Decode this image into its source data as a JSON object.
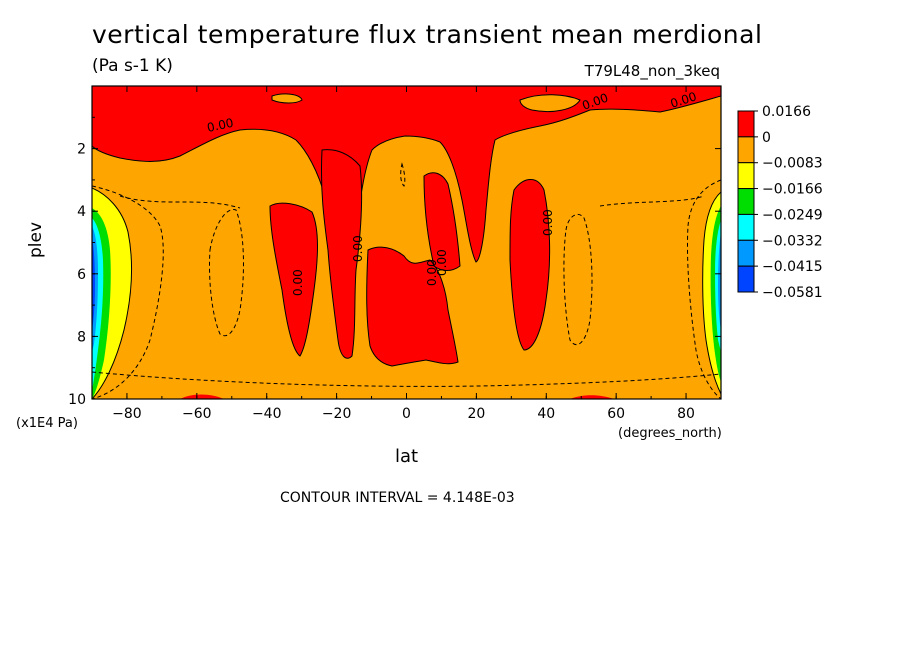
{
  "colors": {
    "c_pos": "#ff0000",
    "c_zero": "#ffa500",
    "c_m1": "#ffff00",
    "c_m2": "#00dd00",
    "c_m3": "#00ffff",
    "c_m4": "#0099ff",
    "c_m5": "#0044ff"
  },
  "chart_data": {
    "type": "heatmap",
    "title": "vertical temperature flux transient mean merdional",
    "units": "(Pa s-1 K)",
    "run_label": "T79L48_non_3keq",
    "xlabel": "lat",
    "xunit": "(degrees_north)",
    "ylabel": "plev",
    "yunit": "(x1E4 Pa)",
    "xlim": [
      -90,
      90
    ],
    "ylim": [
      10,
      0
    ],
    "xticks": [
      "-80",
      "-60",
      "-40",
      "-20",
      "0",
      "20",
      "40",
      "60",
      "80"
    ],
    "yticks": [
      "2",
      "4",
      "6",
      "8",
      "10"
    ],
    "legend": [
      "0.0166",
      "0",
      "-0.0083",
      "-0.0166",
      "-0.0249",
      "-0.0332",
      "-0.0415",
      "-0.0581"
    ],
    "contour_interval": "CONTOUR INTERVAL = 4.148E-03",
    "contour_label": "0.00",
    "grid": false,
    "legend_position": "right"
  }
}
